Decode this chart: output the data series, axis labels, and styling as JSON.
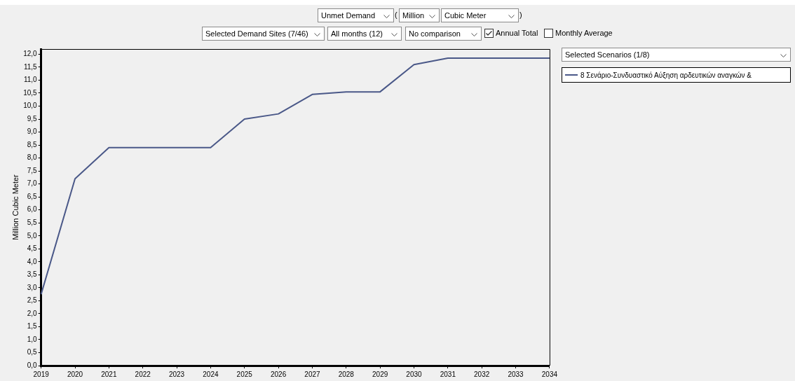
{
  "chart_data": {
    "type": "line",
    "ylabel": "Million Cubic Meter",
    "categories": [
      "2019",
      "2020",
      "2021",
      "2022",
      "2023",
      "2024",
      "2025",
      "2026",
      "2027",
      "2028",
      "2029",
      "2030",
      "2031",
      "2032",
      "2033",
      "2034"
    ],
    "series": [
      {
        "name": "8 Σενάριο-Συνδυαστικό Αύξηση αρδευτικών αναγκών &",
        "color": "#4a5888",
        "values": [
          2.75,
          7.2,
          8.4,
          8.4,
          8.4,
          8.4,
          9.5,
          9.7,
          10.45,
          10.55,
          10.55,
          11.6,
          11.85,
          11.85,
          11.85,
          11.85
        ]
      }
    ],
    "ylim": [
      0,
      12.2
    ],
    "yticks": [
      {
        "value": 0,
        "label": "0,0"
      },
      {
        "value": 0.5,
        "label": "0,5"
      },
      {
        "value": 1,
        "label": "1,0"
      },
      {
        "value": 1.5,
        "label": "1,5"
      },
      {
        "value": 2,
        "label": "2,0"
      },
      {
        "value": 2.5,
        "label": "2,5"
      },
      {
        "value": 3,
        "label": "3,0"
      },
      {
        "value": 3.5,
        "label": "3,5"
      },
      {
        "value": 4,
        "label": "4,0"
      },
      {
        "value": 4.5,
        "label": "4,5"
      },
      {
        "value": 5,
        "label": "5,0"
      },
      {
        "value": 5.5,
        "label": "5,5"
      },
      {
        "value": 6,
        "label": "6,0"
      },
      {
        "value": 6.5,
        "label": "6,5"
      },
      {
        "value": 7,
        "label": "7,0"
      },
      {
        "value": 7.5,
        "label": "7,5"
      },
      {
        "value": 8,
        "label": "8,0"
      },
      {
        "value": 8.5,
        "label": "8,5"
      },
      {
        "value": 9,
        "label": "9,0"
      },
      {
        "value": 9.5,
        "label": "9,5"
      },
      {
        "value": 10,
        "label": "10,0"
      },
      {
        "value": 10.5,
        "label": "10,5"
      },
      {
        "value": 11,
        "label": "11,0"
      },
      {
        "value": 11.5,
        "label": "11,5"
      },
      {
        "value": 12,
        "label": "12,0"
      }
    ],
    "grid": false,
    "legend": "right",
    "marker": "none",
    "line_style": "solid",
    "annotations": [
      "Unmet Demand",
      "(",
      "Million",
      "Cubic Meter",
      ")",
      "Selected Demand Sites (7/46)",
      "All months (12)",
      "No comparison",
      "Annual Total",
      "Monthly Average",
      "Selected Scenarios (1/8)"
    ]
  }
}
